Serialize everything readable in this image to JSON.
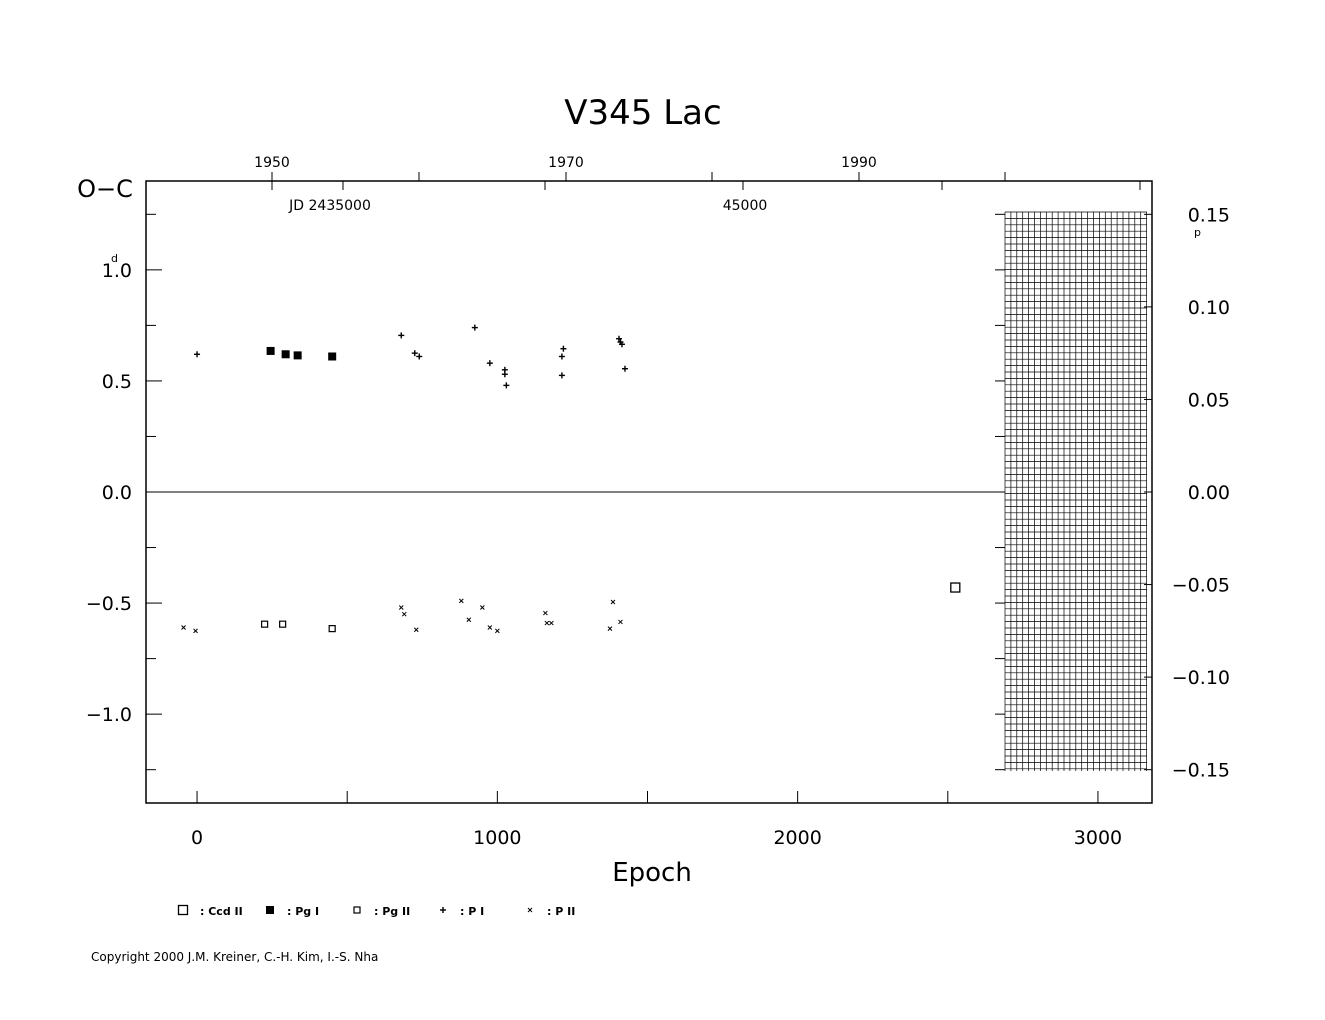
{
  "chart_data": {
    "type": "scatter",
    "title": "V345  Lac",
    "ylabel": "O−C",
    "ylabel_unit": "d",
    "xlabel": "Epoch",
    "xlim": [
      -170,
      3180
    ],
    "ylim": [
      -1.4,
      1.4
    ],
    "x_ticks": [
      "0",
      "1000",
      "2000",
      "3000"
    ],
    "y_ticks_left": [
      "1.0",
      "0.5",
      "0.0",
      "−0.5",
      "−1.0"
    ],
    "y_ticks_right": [
      "0.15",
      "0.10",
      "0.05",
      "0.00",
      "−0.05",
      "−0.10",
      "−0.15"
    ],
    "right_axis_unit": "p",
    "top_year_labels": [
      "1950",
      "1970",
      "1990"
    ],
    "top_jd_labels": [
      "JD  2435000",
      "45000"
    ],
    "grid": false,
    "legend_position": "bottom",
    "series": [
      {
        "name": "Ccd II",
        "marker": "square-open-large",
        "points": [
          [
            2525,
            -0.43
          ]
        ]
      },
      {
        "name": "Pg I",
        "marker": "square-filled",
        "points": [
          [
            245,
            0.635
          ],
          [
            295,
            0.62
          ],
          [
            335,
            0.615
          ],
          [
            450,
            0.61
          ]
        ]
      },
      {
        "name": "Pg II",
        "marker": "square-open",
        "points": [
          [
            225,
            -0.595
          ],
          [
            285,
            -0.595
          ],
          [
            450,
            -0.615
          ]
        ]
      },
      {
        "name": "P I",
        "marker": "plus",
        "points": [
          [
            0,
            0.62
          ],
          [
            680,
            0.705
          ],
          [
            725,
            0.625
          ],
          [
            740,
            0.61
          ],
          [
            925,
            0.74
          ],
          [
            975,
            0.58
          ],
          [
            1025,
            0.55
          ],
          [
            1025,
            0.53
          ],
          [
            1030,
            0.48
          ],
          [
            1215,
            0.61
          ],
          [
            1220,
            0.645
          ],
          [
            1215,
            0.525
          ],
          [
            1405,
            0.69
          ],
          [
            1410,
            0.675
          ],
          [
            1415,
            0.665
          ],
          [
            1425,
            0.555
          ]
        ]
      },
      {
        "name": "P II",
        "marker": "cross",
        "points": [
          [
            -45,
            -0.61
          ],
          [
            -5,
            -0.625
          ],
          [
            680,
            -0.52
          ],
          [
            690,
            -0.55
          ],
          [
            730,
            -0.62
          ],
          [
            880,
            -0.49
          ],
          [
            905,
            -0.575
          ],
          [
            950,
            -0.52
          ],
          [
            975,
            -0.61
          ],
          [
            1000,
            -0.625
          ],
          [
            1160,
            -0.545
          ],
          [
            1165,
            -0.59
          ],
          [
            1180,
            -0.59
          ],
          [
            1375,
            -0.615
          ],
          [
            1385,
            -0.495
          ],
          [
            1410,
            -0.585
          ]
        ]
      }
    ]
  },
  "footer": {
    "copyright": "Copyright 2000 J.M. Kreiner, C.-H. Kim, I.-S. Nha"
  }
}
